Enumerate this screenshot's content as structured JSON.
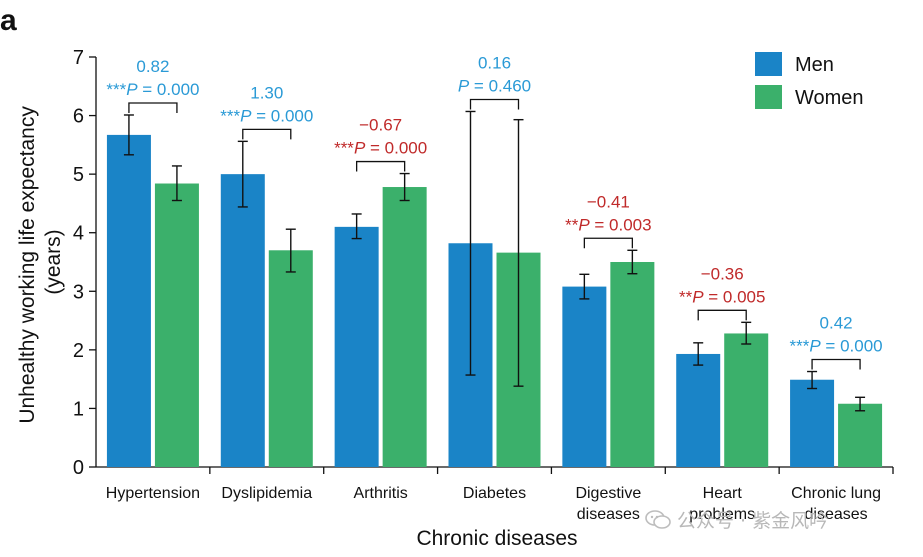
{
  "panel_label": "a",
  "watermark": "公众号 · 紫金风吟",
  "chart_data": {
    "type": "bar",
    "title": "",
    "xlabel": "Chronic diseases",
    "ylabel": "Unhealthy working life expectancy (years)",
    "ylim": [
      0,
      7
    ],
    "yticks": [
      0,
      1,
      2,
      3,
      4,
      5,
      6,
      7
    ],
    "grid": false,
    "legend_position": "top-right",
    "categories": [
      "Hypertension",
      "Dyslipidemia",
      "Arthritis",
      "Diabetes",
      "Digestive diseases",
      "Heart problems",
      "Chronic lung diseases"
    ],
    "series": [
      {
        "name": "Men",
        "color": "#1a84c7",
        "values": [
          5.67,
          5.0,
          4.1,
          3.82,
          3.08,
          1.93,
          1.49
        ],
        "err_low": [
          5.33,
          4.44,
          3.9,
          1.57,
          2.87,
          1.74,
          1.34
        ],
        "err_high": [
          6.01,
          5.56,
          4.32,
          6.07,
          3.29,
          2.12,
          1.63
        ]
      },
      {
        "name": "Women",
        "color": "#3bb06b",
        "values": [
          4.84,
          3.7,
          4.78,
          3.66,
          3.5,
          2.28,
          1.08
        ],
        "err_low": [
          4.55,
          3.33,
          4.55,
          1.38,
          3.3,
          2.1,
          0.96
        ],
        "err_high": [
          5.14,
          4.06,
          5.01,
          5.93,
          3.7,
          2.47,
          1.19
        ]
      }
    ],
    "annotations": [
      {
        "diff": "0.82",
        "stars": "***",
        "p": "= 0.000",
        "color": "#2a9ad6"
      },
      {
        "diff": "1.30",
        "stars": "***",
        "p": "= 0.000",
        "color": "#2a9ad6"
      },
      {
        "diff": "−0.67",
        "stars": "***",
        "p": "= 0.000",
        "color": "#c02a2a"
      },
      {
        "diff": "0.16",
        "stars": "",
        "p": "= 0.460",
        "color": "#2a9ad6"
      },
      {
        "diff": "−0.41",
        "stars": "**",
        "p": "= 0.003",
        "color": "#c02a2a"
      },
      {
        "diff": "−0.36",
        "stars": "**",
        "p": "= 0.005",
        "color": "#c02a2a"
      },
      {
        "diff": "0.42",
        "stars": "***",
        "p": "= 0.000",
        "color": "#2a9ad6"
      }
    ],
    "p_symbol": "P"
  }
}
